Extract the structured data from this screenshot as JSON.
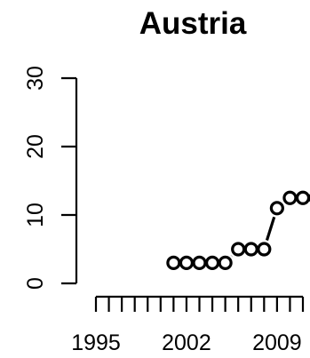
{
  "chart_data": {
    "type": "line",
    "title": "Austria",
    "xlabel": "",
    "ylabel": "",
    "xlim": [
      1995,
      2011
    ],
    "ylim": [
      0,
      30
    ],
    "x_ticks": [
      1995,
      1996,
      1997,
      1998,
      1999,
      2000,
      2001,
      2002,
      2003,
      2004,
      2005,
      2006,
      2007,
      2008,
      2009,
      2010,
      2011
    ],
    "x_tick_labels": [
      {
        "value": 1995,
        "label": "1995"
      },
      {
        "value": 2002,
        "label": "2002"
      },
      {
        "value": 2009,
        "label": "2009"
      }
    ],
    "y_ticks": [
      0,
      10,
      20,
      30
    ],
    "y_tick_labels": [
      "0",
      "10",
      "20",
      "30"
    ],
    "grid": false,
    "legend": "none",
    "series": [
      {
        "x": [
          2001,
          2002,
          2003,
          2004,
          2005,
          2006,
          2007,
          2008,
          2009,
          2010,
          2011,
          2012
        ],
        "y": [
          3,
          3,
          3,
          3,
          3,
          5,
          5,
          5,
          11,
          12.5,
          12.5,
          12.5
        ]
      }
    ]
  }
}
